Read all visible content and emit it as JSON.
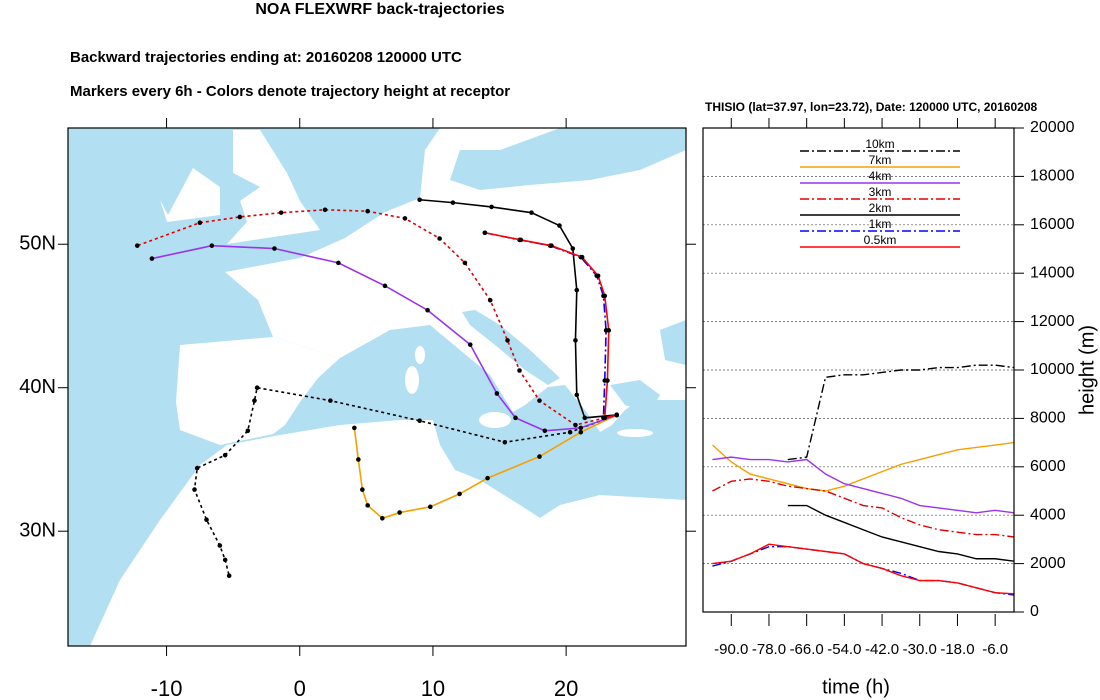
{
  "chart_data": [
    {
      "type": "map",
      "title": "NOA FLEXWRF back-trajectories",
      "subtitles": [
        "Backward trajectories ending at: 20160208  120000 UTC",
        "Markers every 6h - Colors denote trajectory height at receptor"
      ],
      "xlim": [
        -17.4,
        29
      ],
      "ylim": [
        22,
        58.1
      ],
      "xticks": [
        -10,
        0,
        10,
        20
      ],
      "yticks": [
        {
          "value": 30,
          "label": "30N"
        },
        {
          "value": 40,
          "label": "40N"
        },
        {
          "value": 50,
          "label": "50N"
        }
      ],
      "series": [
        {
          "color": "#000000",
          "dash": "dotted",
          "x": [
            23.8,
            20.3,
            15.4,
            9.0,
            2.3,
            -3.2,
            -3.4,
            -3.9,
            -5.6,
            -7.7,
            -7.9,
            -7.0,
            -6.0,
            -5.6,
            -5.3
          ],
          "values": [
            38.1,
            36.9,
            36.2,
            37.7,
            39.1,
            40.0,
            39.1,
            37.0,
            35.3,
            34.4,
            32.9,
            30.8,
            29.0,
            28.0,
            26.9
          ]
        },
        {
          "color": "#f5a000",
          "dash": "solid",
          "x": [
            23.8,
            21.1,
            18.0,
            14.1,
            12.0,
            9.8,
            7.5,
            6.2,
            5.1,
            4.7,
            4.4,
            4.1
          ],
          "values": [
            38.1,
            36.9,
            35.2,
            33.7,
            32.6,
            31.7,
            31.3,
            30.9,
            31.8,
            32.9,
            35.0,
            37.2
          ]
        },
        {
          "color": "#9933ee",
          "dash": "solid",
          "x": [
            23.8,
            21.1,
            18.4,
            16.2,
            14.8,
            12.8,
            9.6,
            6.4,
            2.9,
            -1.9,
            -6.6,
            -11.1
          ],
          "values": [
            38.1,
            37.2,
            37.0,
            37.9,
            39.6,
            43.0,
            45.4,
            47.1,
            48.7,
            49.7,
            49.9,
            49.0
          ]
        },
        {
          "color": "#e00000",
          "dash": "dotted",
          "x": [
            23.8,
            20.7,
            18.0,
            16.5,
            15.6,
            14.3,
            12.4,
            10.5,
            7.9,
            5.1,
            1.9,
            -1.4,
            -4.5,
            -7.5,
            -12.2
          ],
          "values": [
            38.1,
            37.4,
            39.1,
            41.2,
            43.3,
            46.1,
            48.7,
            50.4,
            51.8,
            52.3,
            52.4,
            52.2,
            51.9,
            51.5,
            49.9
          ]
        },
        {
          "color": "#000000",
          "dash": "solid",
          "x": [
            23.8,
            21.4,
            20.8,
            20.7,
            20.8,
            20.5,
            19.5,
            17.4,
            14.4,
            11.5,
            9.0
          ],
          "values": [
            38.1,
            37.9,
            39.5,
            43.3,
            46.8,
            49.7,
            51.3,
            52.2,
            52.6,
            52.9,
            53.1
          ]
        },
        {
          "color": "#0000ff",
          "dash": "dashdot",
          "x": [
            23.8,
            22.8,
            22.9,
            23.0,
            22.8,
            22.3,
            21.1,
            18.8,
            16.5,
            13.9
          ],
          "values": [
            38.1,
            37.9,
            40.5,
            44.0,
            46.4,
            47.8,
            49.1,
            49.9,
            50.3,
            50.8
          ]
        },
        {
          "color": "#ff0000",
          "dash": "solid",
          "x": [
            23.8,
            22.9,
            23.1,
            23.2,
            22.9,
            22.4,
            21.2,
            18.9,
            16.6,
            13.9
          ],
          "values": [
            38.1,
            37.9,
            40.5,
            44.0,
            46.4,
            47.8,
            49.1,
            49.9,
            50.3,
            50.8
          ]
        }
      ]
    },
    {
      "type": "line",
      "title": "THISIO (lat=37.97,  lon=23.72), Date: 120000 UTC, 20160208",
      "xlabel": "time (h)",
      "ylabel": "height (m)",
      "x": [
        -96,
        -90,
        -84,
        -78,
        -72,
        -66,
        -60,
        -54,
        -48,
        -42,
        -36,
        -30,
        -24,
        -18,
        -12,
        -6,
        0
      ],
      "xlim": [
        -99,
        0
      ],
      "ylim": [
        0,
        20000
      ],
      "xticks": [
        {
          "value": -90,
          "label": "-90.0"
        },
        {
          "value": -78,
          "label": "-78.0"
        },
        {
          "value": -66,
          "label": "-66.0"
        },
        {
          "value": -54,
          "label": "-54.0"
        },
        {
          "value": -42,
          "label": "-42.0"
        },
        {
          "value": -30,
          "label": "-30.0"
        },
        {
          "value": -18,
          "label": "-18.0"
        },
        {
          "value": -6,
          "label": "-6.0"
        }
      ],
      "yticks": [
        0,
        2000,
        4000,
        6000,
        8000,
        10000,
        12000,
        14000,
        16000,
        18000,
        20000
      ],
      "grid": true,
      "series": [
        {
          "name": "10km",
          "color": "#000000",
          "dash": "dashdot",
          "values": [
            null,
            null,
            null,
            null,
            6300,
            6400,
            9700,
            9800,
            9800,
            9900,
            10000,
            10000,
            10100,
            10100,
            10200,
            10200,
            10100
          ]
        },
        {
          "name": "7km",
          "color": "#f5a000",
          "dash": "solid",
          "values": [
            6900,
            6200,
            5700,
            5500,
            5300,
            5100,
            5000,
            5200,
            5500,
            5800,
            6100,
            6300,
            6500,
            6700,
            6800,
            6900,
            7000
          ]
        },
        {
          "name": "4km",
          "color": "#9933ee",
          "dash": "solid",
          "values": [
            6300,
            6400,
            6300,
            6300,
            6200,
            6300,
            5700,
            5300,
            5100,
            4900,
            4700,
            4400,
            4300,
            4200,
            4100,
            4200,
            4100
          ]
        },
        {
          "name": "3km",
          "color": "#e00000",
          "dash": "dashdot",
          "values": [
            5000,
            5400,
            5500,
            5400,
            5200,
            5100,
            5000,
            4700,
            4400,
            4300,
            3900,
            3600,
            3400,
            3300,
            3200,
            3200,
            3100
          ]
        },
        {
          "name": "2km",
          "color": "#000000",
          "dash": "solid",
          "values": [
            null,
            null,
            null,
            null,
            4400,
            4400,
            4000,
            3700,
            3400,
            3100,
            2900,
            2700,
            2500,
            2400,
            2200,
            2200,
            2100
          ]
        },
        {
          "name": "1km",
          "color": "#0000ff",
          "dash": "dashdot",
          "values": [
            1900,
            2100,
            2400,
            2700,
            2700,
            2600,
            2500,
            2400,
            2000,
            1800,
            1600,
            1300,
            1300,
            1200,
            1000,
            800,
            700
          ]
        },
        {
          "name": "0.5km",
          "color": "#ff0000",
          "dash": "solid",
          "values": [
            2000,
            2100,
            2400,
            2800,
            2700,
            2600,
            2500,
            2400,
            2000,
            1800,
            1500,
            1300,
            1300,
            1200,
            1000,
            800,
            750
          ]
        }
      ]
    }
  ]
}
